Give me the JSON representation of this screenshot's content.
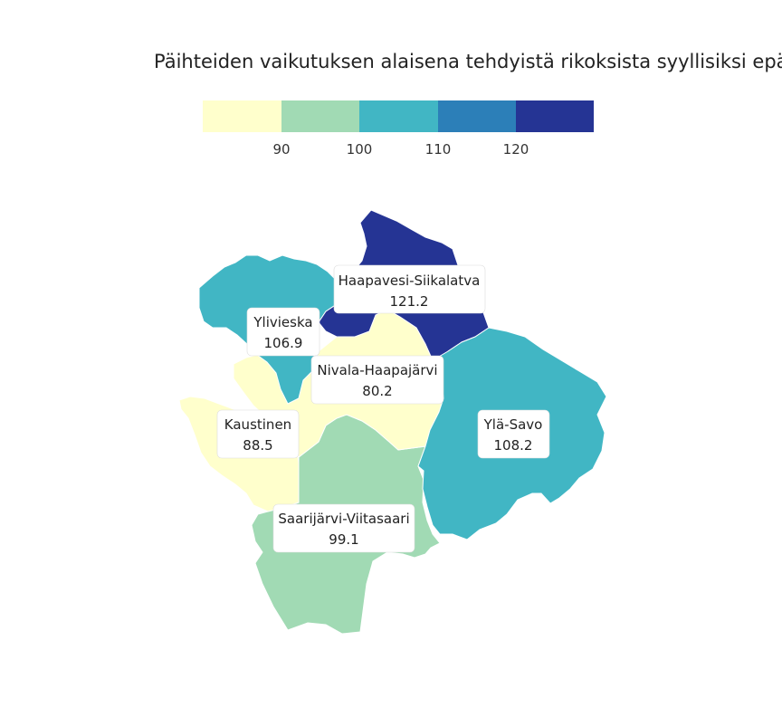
{
  "title": "Päihteiden vaikutuksen alaisena tehdyistä rikoksista syyllisiksi epäi",
  "legend": {
    "colors": [
      "#ffffcc",
      "#a1dab4",
      "#41b6c4",
      "#2c7fb8",
      "#253494"
    ],
    "ticks": [
      "90",
      "100",
      "110",
      "120"
    ]
  },
  "regions": [
    {
      "name": "Haapavesi-Siikalatva",
      "value": "121.2",
      "color": "#253494"
    },
    {
      "name": "Ylivieska",
      "value": "106.9",
      "color": "#41b6c4"
    },
    {
      "name": "Nivala-Haapajärvi",
      "value": "80.2",
      "color": "#ffffcc"
    },
    {
      "name": "Kaustinen",
      "value": "88.5",
      "color": "#ffffcc"
    },
    {
      "name": "Ylä-Savo",
      "value": "108.2",
      "color": "#41b6c4"
    },
    {
      "name": "Saarijärvi-Viitasaari",
      "value": "99.1",
      "color": "#a1dab4"
    }
  ]
}
